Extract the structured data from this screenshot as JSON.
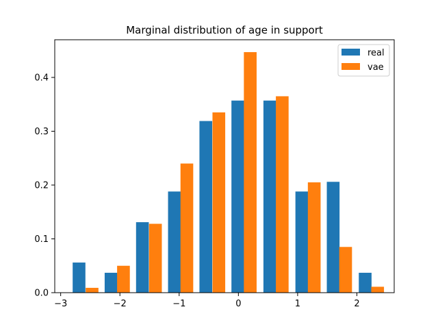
{
  "chart_data": {
    "type": "bar",
    "title": "Marginal distribution of age in support",
    "xlabel": "",
    "ylabel": "",
    "xlim": [
      -3.1,
      2.63
    ],
    "ylim": [
      0,
      0.47
    ],
    "xticks": [
      -3,
      -2,
      -1,
      0,
      1,
      2
    ],
    "xtick_labels": [
      "−3",
      "−2",
      "−1",
      "0",
      "1",
      "2"
    ],
    "yticks": [
      0.0,
      0.1,
      0.2,
      0.3,
      0.4
    ],
    "ytick_labels": [
      "0.0",
      "0.1",
      "0.2",
      "0.3",
      "0.4"
    ],
    "bin_width": 0.215,
    "grid": false,
    "legend_position": "top-right",
    "series": [
      {
        "name": "real",
        "color": "#1f77b4",
        "x": [
          -2.69,
          -2.15,
          -1.62,
          -1.08,
          -0.55,
          -0.01,
          0.53,
          1.07,
          1.6,
          2.14
        ],
        "values": [
          0.056,
          0.037,
          0.131,
          0.188,
          0.319,
          0.357,
          0.357,
          0.188,
          0.206,
          0.037
        ]
      },
      {
        "name": "vae",
        "color": "#ff7f0e",
        "x": [
          -2.47,
          -1.94,
          -1.4,
          -0.87,
          -0.33,
          0.2,
          0.74,
          1.28,
          1.81,
          2.35
        ],
        "values": [
          0.009,
          0.05,
          0.128,
          0.24,
          0.335,
          0.447,
          0.365,
          0.205,
          0.085,
          0.011
        ]
      }
    ]
  }
}
